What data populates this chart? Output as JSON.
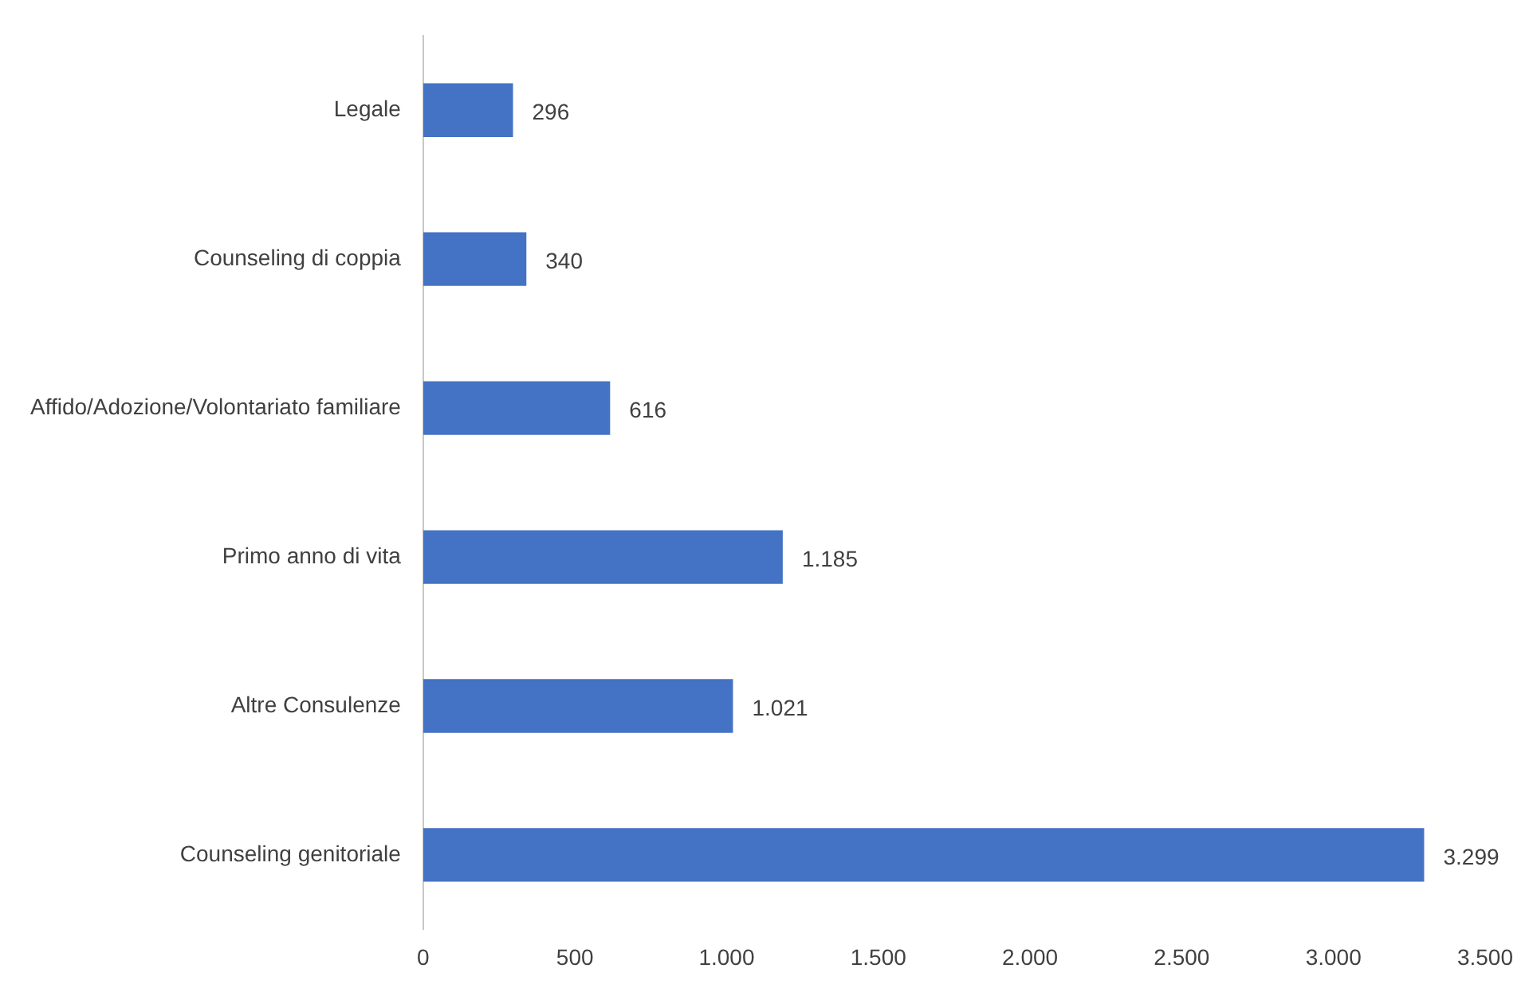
{
  "chart_data": {
    "type": "bar",
    "orientation": "horizontal",
    "categories": [
      "Legale",
      "Counseling di coppia",
      "Affido/Adozione/Volontariato familiare",
      "Primo anno di vita",
      "Altre Consulenze",
      "Counseling genitoriale"
    ],
    "values": [
      296,
      340,
      616,
      1185,
      1021,
      3299
    ],
    "value_labels": [
      "296",
      "340",
      "616",
      "1.185",
      "1.021",
      "3.299"
    ],
    "color": "#4472c4",
    "xlim": [
      0,
      3500
    ],
    "xticks": [
      0,
      500,
      {
        "value": 1000,
        "label": "1.000"
      },
      {
        "value": 1500,
        "label": "1.500"
      },
      {
        "value": 2000,
        "label": "2.000"
      },
      {
        "value": 2500,
        "label": "2.500"
      },
      {
        "value": 3000,
        "label": "3.000"
      },
      {
        "value": 3500,
        "label": "3.500"
      }
    ]
  }
}
